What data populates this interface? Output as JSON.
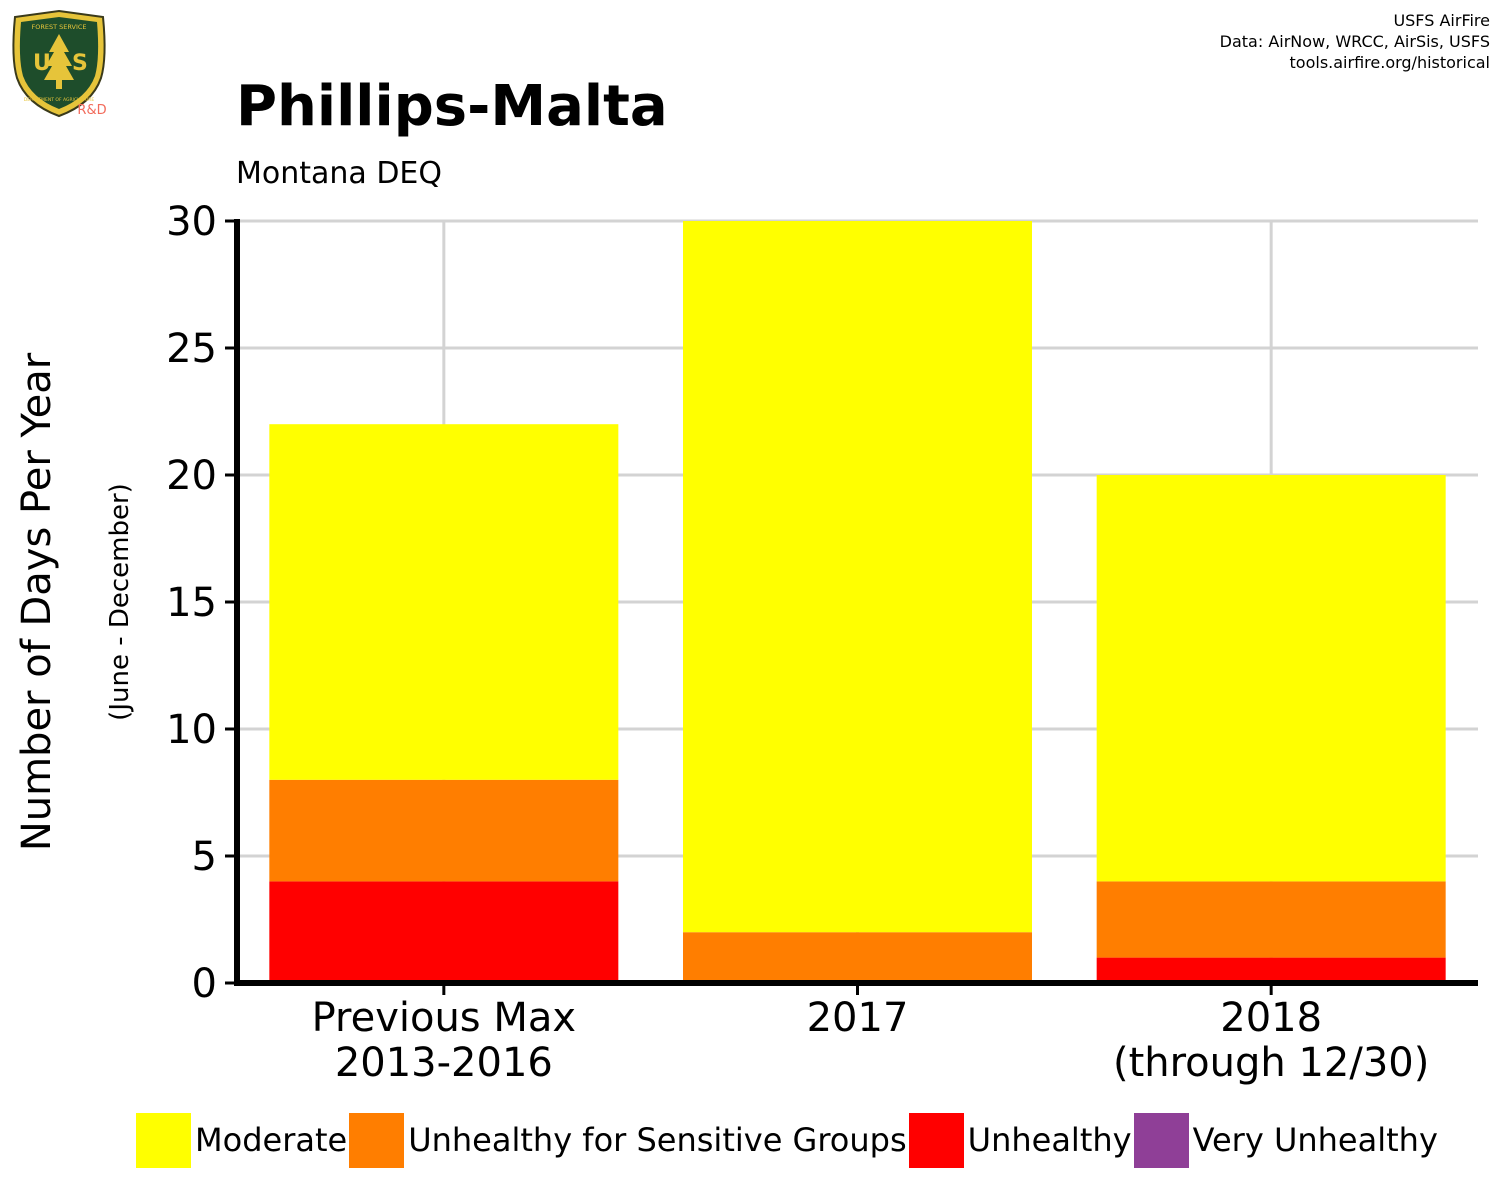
{
  "logo": {
    "text_top": "FOREST SERVICE",
    "text_main": "US",
    "text_bottom": "DEPARTMENT OF AGRICULTURE",
    "tag": "R&D"
  },
  "credits": {
    "line1": "USFS AirFire",
    "line2": "Data: AirNow, WRCC, AirSis, USFS",
    "line3": "tools.airfire.org/historical"
  },
  "chart_data": {
    "type": "bar",
    "stacked": true,
    "title": "Phillips-Malta",
    "subtitle": "Montana DEQ",
    "ylabel": "Number of Days Per Year",
    "ylabel_sub": "(June - December)",
    "xlabel": "",
    "categories": [
      [
        "Previous Max",
        "2013-2016"
      ],
      [
        "2017"
      ],
      [
        "2018",
        "(through 12/30)"
      ]
    ],
    "ylim": [
      0,
      30
    ],
    "yticks": [
      0,
      5,
      10,
      15,
      20,
      25,
      30
    ],
    "grid": true,
    "legend_position": "bottom",
    "series": [
      {
        "name": "Moderate",
        "color": "#FFFF00",
        "values": [
          14,
          28,
          16
        ]
      },
      {
        "name": "Unhealthy for Sensitive Groups",
        "color": "#FF7E00",
        "values": [
          4,
          2,
          3
        ]
      },
      {
        "name": "Unhealthy",
        "color": "#FF0000",
        "values": [
          4,
          0,
          1
        ]
      },
      {
        "name": "Very Unhealthy",
        "color": "#8F3F97",
        "values": [
          0,
          0,
          0
        ]
      }
    ]
  }
}
